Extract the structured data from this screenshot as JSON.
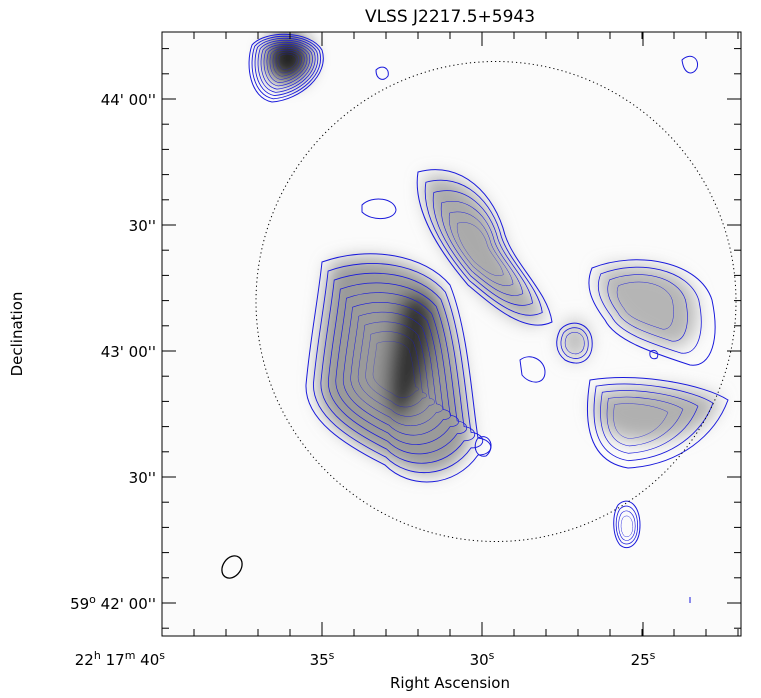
{
  "title": "VLSS J2217.5+5943",
  "x_axis": {
    "label": "Right Ascension",
    "ticks": [
      [
        "22",
        "h",
        " 17",
        "m",
        " 40",
        "s"
      ],
      [
        "35",
        "s"
      ],
      [
        "30",
        "s"
      ],
      [
        "25",
        "s"
      ]
    ]
  },
  "y_axis": {
    "label": "Declination",
    "ticks": [
      [
        "44' 00''"
      ],
      [
        "30''"
      ],
      [
        "43' 00''"
      ],
      [
        "30''"
      ],
      [
        "59",
        "o",
        " 42' 00''"
      ]
    ]
  }
}
